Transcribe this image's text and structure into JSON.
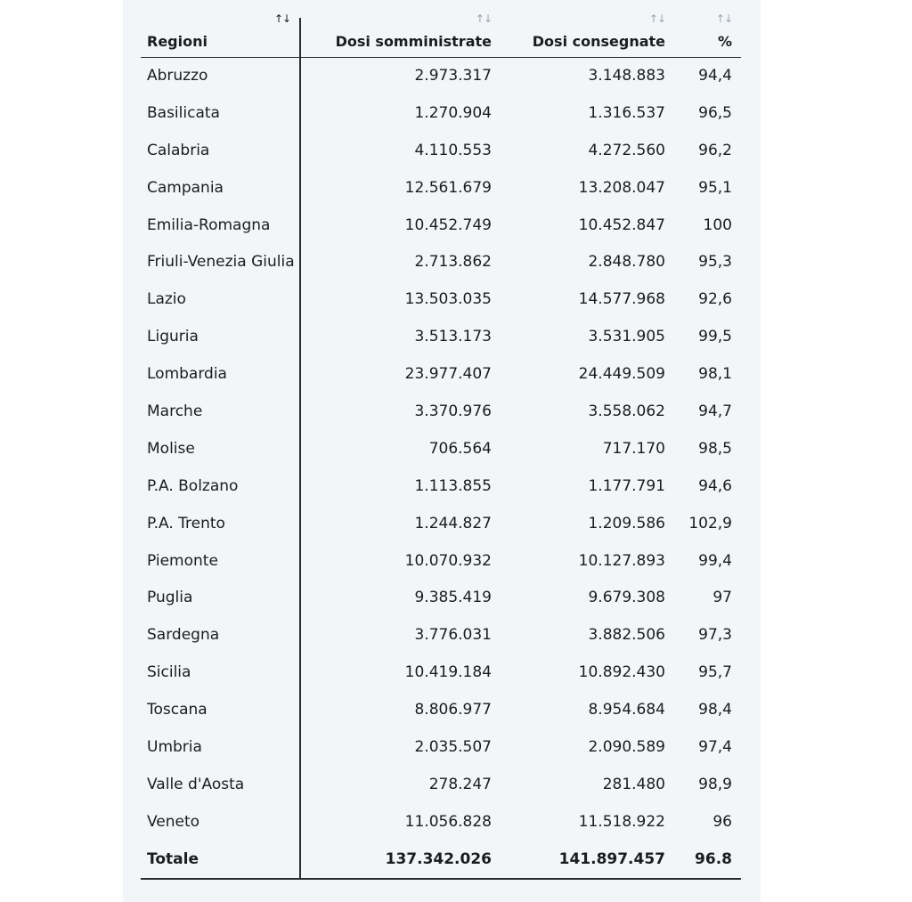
{
  "table": {
    "headers": {
      "region": "Regioni",
      "administered": "Dosi somministrate",
      "delivered": "Dosi consegnate",
      "percent": "%"
    },
    "sort_icon": "↑↓",
    "rows": [
      {
        "region": "Abruzzo",
        "administered": "2.973.317",
        "delivered": "3.148.883",
        "percent": "94,4"
      },
      {
        "region": "Basilicata",
        "administered": "1.270.904",
        "delivered": "1.316.537",
        "percent": "96,5"
      },
      {
        "region": "Calabria",
        "administered": "4.110.553",
        "delivered": "4.272.560",
        "percent": "96,2"
      },
      {
        "region": "Campania",
        "administered": "12.561.679",
        "delivered": "13.208.047",
        "percent": "95,1"
      },
      {
        "region": "Emilia-Romagna",
        "administered": "10.452.749",
        "delivered": "10.452.847",
        "percent": "100"
      },
      {
        "region": "Friuli-Venezia Giulia",
        "administered": "2.713.862",
        "delivered": "2.848.780",
        "percent": "95,3"
      },
      {
        "region": "Lazio",
        "administered": "13.503.035",
        "delivered": "14.577.968",
        "percent": "92,6"
      },
      {
        "region": "Liguria",
        "administered": "3.513.173",
        "delivered": "3.531.905",
        "percent": "99,5"
      },
      {
        "region": "Lombardia",
        "administered": "23.977.407",
        "delivered": "24.449.509",
        "percent": "98,1"
      },
      {
        "region": "Marche",
        "administered": "3.370.976",
        "delivered": "3.558.062",
        "percent": "94,7"
      },
      {
        "region": "Molise",
        "administered": "706.564",
        "delivered": "717.170",
        "percent": "98,5"
      },
      {
        "region": "P.A. Bolzano",
        "administered": "1.113.855",
        "delivered": "1.177.791",
        "percent": "94,6"
      },
      {
        "region": "P.A. Trento",
        "administered": "1.244.827",
        "delivered": "1.209.586",
        "percent": "102,9"
      },
      {
        "region": "Piemonte",
        "administered": "10.070.932",
        "delivered": "10.127.893",
        "percent": "99,4"
      },
      {
        "region": "Puglia",
        "administered": "9.385.419",
        "delivered": "9.679.308",
        "percent": "97"
      },
      {
        "region": "Sardegna",
        "administered": "3.776.031",
        "delivered": "3.882.506",
        "percent": "97,3"
      },
      {
        "region": "Sicilia",
        "administered": "10.419.184",
        "delivered": "10.892.430",
        "percent": "95,7"
      },
      {
        "region": "Toscana",
        "administered": "8.806.977",
        "delivered": "8.954.684",
        "percent": "98,4"
      },
      {
        "region": "Umbria",
        "administered": "2.035.507",
        "delivered": "2.090.589",
        "percent": "97,4"
      },
      {
        "region": "Valle d'Aosta",
        "administered": "278.247",
        "delivered": "281.480",
        "percent": "98,9"
      },
      {
        "region": "Veneto",
        "administered": "11.056.828",
        "delivered": "11.518.922",
        "percent": "96"
      }
    ],
    "total": {
      "region": "Totale",
      "administered": "137.342.026",
      "delivered": "141.897.457",
      "percent": "96.8"
    }
  }
}
